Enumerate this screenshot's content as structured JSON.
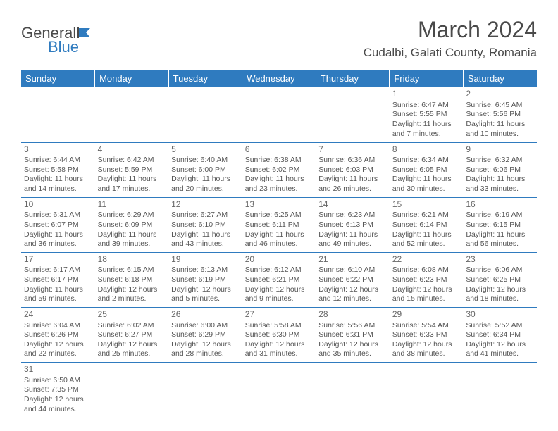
{
  "logo": {
    "part1": "General",
    "part2": "Blue"
  },
  "title": "March 2024",
  "location": "Cudalbi, Galati County, Romania",
  "headerColor": "#2f7bbf",
  "days": [
    "Sunday",
    "Monday",
    "Tuesday",
    "Wednesday",
    "Thursday",
    "Friday",
    "Saturday"
  ],
  "weeks": [
    [
      null,
      null,
      null,
      null,
      null,
      {
        "n": "1",
        "sr": "6:47 AM",
        "ss": "5:55 PM",
        "dl": "11 hours and 7 minutes."
      },
      {
        "n": "2",
        "sr": "6:45 AM",
        "ss": "5:56 PM",
        "dl": "11 hours and 10 minutes."
      }
    ],
    [
      {
        "n": "3",
        "sr": "6:44 AM",
        "ss": "5:58 PM",
        "dl": "11 hours and 14 minutes."
      },
      {
        "n": "4",
        "sr": "6:42 AM",
        "ss": "5:59 PM",
        "dl": "11 hours and 17 minutes."
      },
      {
        "n": "5",
        "sr": "6:40 AM",
        "ss": "6:00 PM",
        "dl": "11 hours and 20 minutes."
      },
      {
        "n": "6",
        "sr": "6:38 AM",
        "ss": "6:02 PM",
        "dl": "11 hours and 23 minutes."
      },
      {
        "n": "7",
        "sr": "6:36 AM",
        "ss": "6:03 PM",
        "dl": "11 hours and 26 minutes."
      },
      {
        "n": "8",
        "sr": "6:34 AM",
        "ss": "6:05 PM",
        "dl": "11 hours and 30 minutes."
      },
      {
        "n": "9",
        "sr": "6:32 AM",
        "ss": "6:06 PM",
        "dl": "11 hours and 33 minutes."
      }
    ],
    [
      {
        "n": "10",
        "sr": "6:31 AM",
        "ss": "6:07 PM",
        "dl": "11 hours and 36 minutes."
      },
      {
        "n": "11",
        "sr": "6:29 AM",
        "ss": "6:09 PM",
        "dl": "11 hours and 39 minutes."
      },
      {
        "n": "12",
        "sr": "6:27 AM",
        "ss": "6:10 PM",
        "dl": "11 hours and 43 minutes."
      },
      {
        "n": "13",
        "sr": "6:25 AM",
        "ss": "6:11 PM",
        "dl": "11 hours and 46 minutes."
      },
      {
        "n": "14",
        "sr": "6:23 AM",
        "ss": "6:13 PM",
        "dl": "11 hours and 49 minutes."
      },
      {
        "n": "15",
        "sr": "6:21 AM",
        "ss": "6:14 PM",
        "dl": "11 hours and 52 minutes."
      },
      {
        "n": "16",
        "sr": "6:19 AM",
        "ss": "6:15 PM",
        "dl": "11 hours and 56 minutes."
      }
    ],
    [
      {
        "n": "17",
        "sr": "6:17 AM",
        "ss": "6:17 PM",
        "dl": "11 hours and 59 minutes."
      },
      {
        "n": "18",
        "sr": "6:15 AM",
        "ss": "6:18 PM",
        "dl": "12 hours and 2 minutes."
      },
      {
        "n": "19",
        "sr": "6:13 AM",
        "ss": "6:19 PM",
        "dl": "12 hours and 5 minutes."
      },
      {
        "n": "20",
        "sr": "6:12 AM",
        "ss": "6:21 PM",
        "dl": "12 hours and 9 minutes."
      },
      {
        "n": "21",
        "sr": "6:10 AM",
        "ss": "6:22 PM",
        "dl": "12 hours and 12 minutes."
      },
      {
        "n": "22",
        "sr": "6:08 AM",
        "ss": "6:23 PM",
        "dl": "12 hours and 15 minutes."
      },
      {
        "n": "23",
        "sr": "6:06 AM",
        "ss": "6:25 PM",
        "dl": "12 hours and 18 minutes."
      }
    ],
    [
      {
        "n": "24",
        "sr": "6:04 AM",
        "ss": "6:26 PM",
        "dl": "12 hours and 22 minutes."
      },
      {
        "n": "25",
        "sr": "6:02 AM",
        "ss": "6:27 PM",
        "dl": "12 hours and 25 minutes."
      },
      {
        "n": "26",
        "sr": "6:00 AM",
        "ss": "6:29 PM",
        "dl": "12 hours and 28 minutes."
      },
      {
        "n": "27",
        "sr": "5:58 AM",
        "ss": "6:30 PM",
        "dl": "12 hours and 31 minutes."
      },
      {
        "n": "28",
        "sr": "5:56 AM",
        "ss": "6:31 PM",
        "dl": "12 hours and 35 minutes."
      },
      {
        "n": "29",
        "sr": "5:54 AM",
        "ss": "6:33 PM",
        "dl": "12 hours and 38 minutes."
      },
      {
        "n": "30",
        "sr": "5:52 AM",
        "ss": "6:34 PM",
        "dl": "12 hours and 41 minutes."
      }
    ],
    [
      {
        "n": "31",
        "sr": "6:50 AM",
        "ss": "7:35 PM",
        "dl": "12 hours and 44 minutes."
      },
      null,
      null,
      null,
      null,
      null,
      null
    ]
  ],
  "labels": {
    "sunrise": "Sunrise: ",
    "sunset": "Sunset: ",
    "daylight": "Daylight: "
  }
}
